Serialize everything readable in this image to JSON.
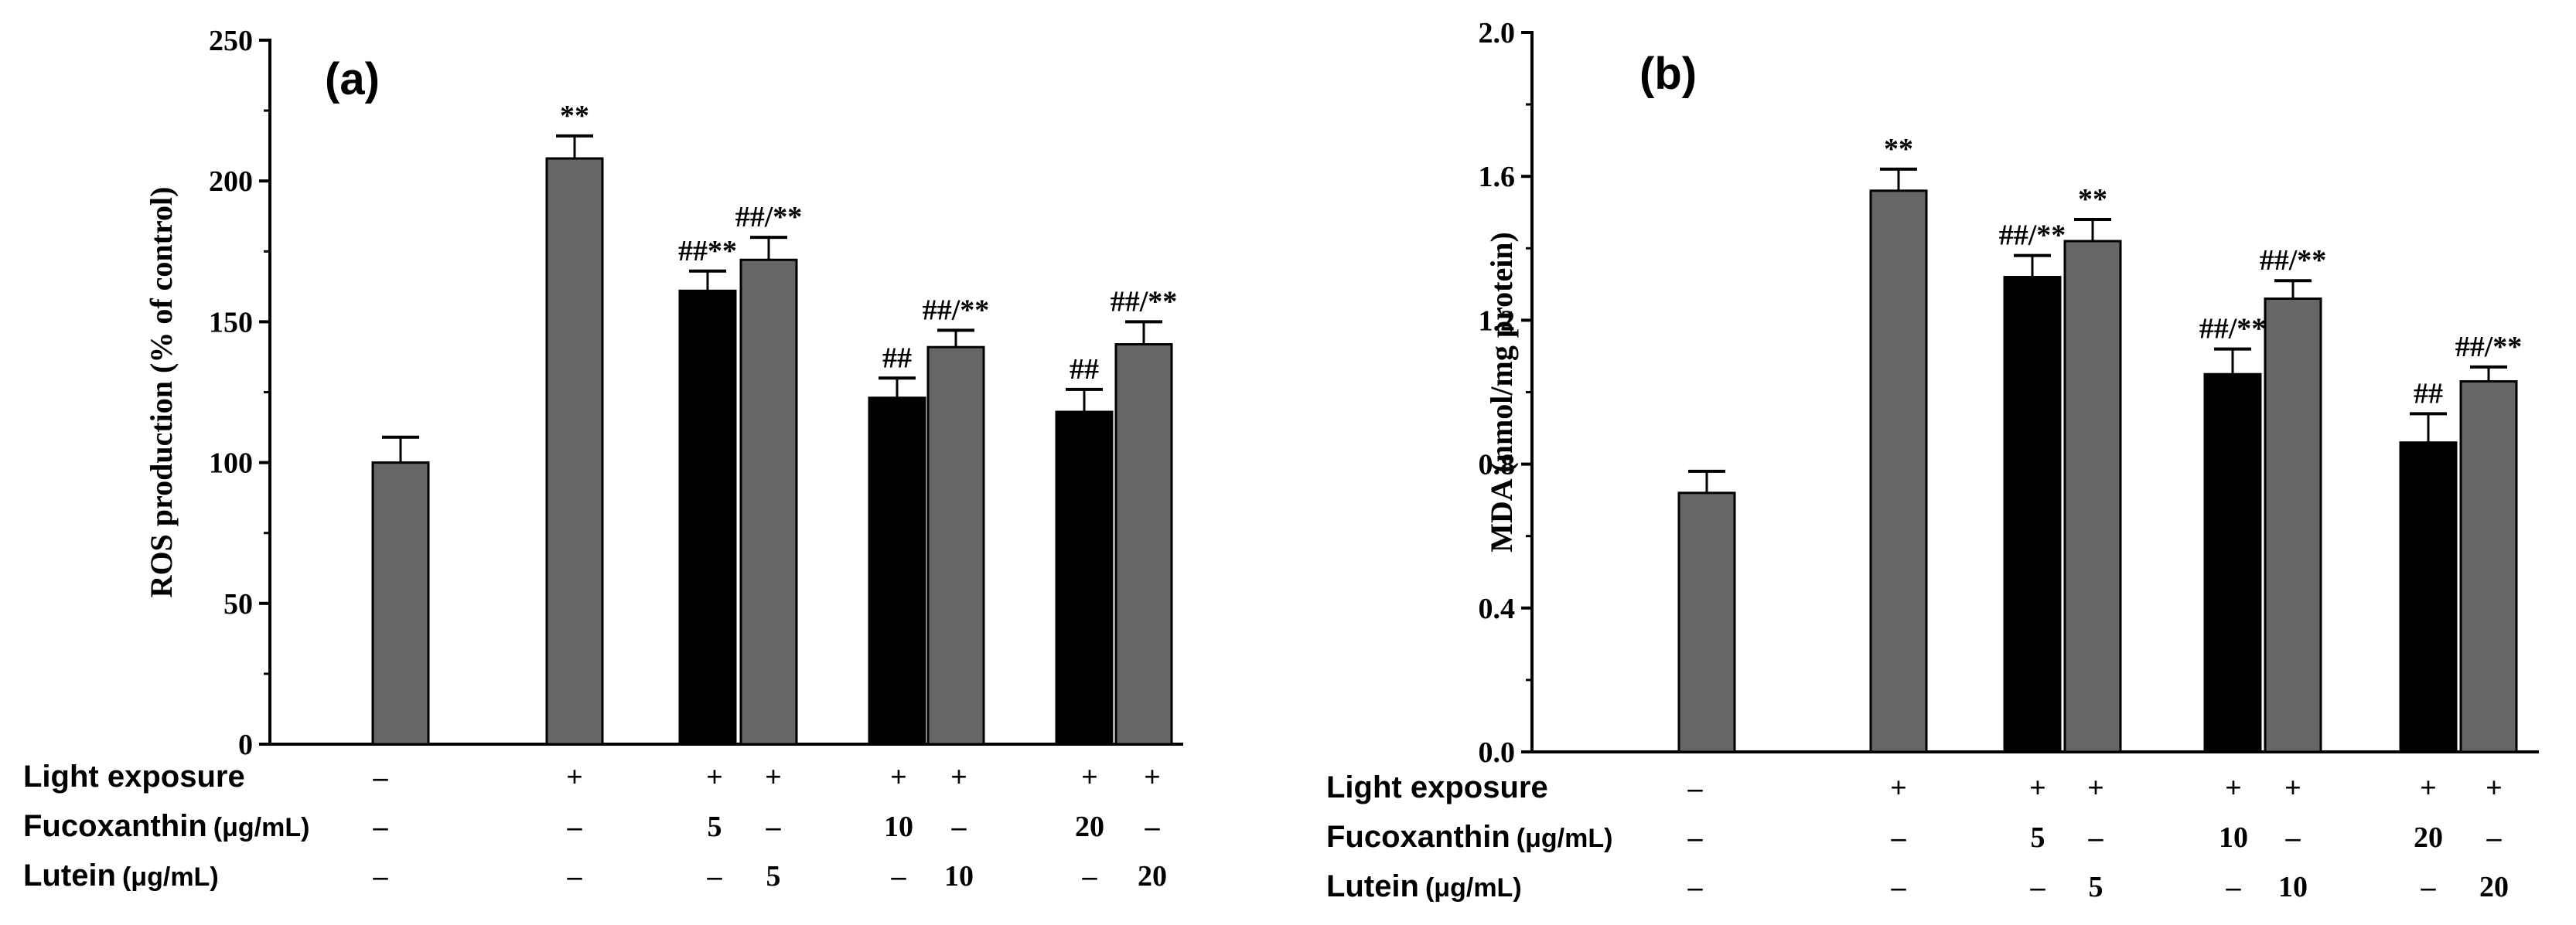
{
  "chart_data": [
    {
      "type": "bar",
      "panel_label": "(a)",
      "ylabel": "ROS production (% of control)",
      "ylim": [
        0,
        250
      ],
      "yticks": [
        "0",
        "50",
        "100",
        "150",
        "200",
        "250"
      ],
      "bars": [
        {
          "group": 1,
          "series": "Lutein",
          "value": 100,
          "error": 9,
          "annotation": ""
        },
        {
          "group": 2,
          "series": "Lutein",
          "value": 208,
          "error": 8,
          "annotation": "**"
        },
        {
          "group": 3,
          "series": "Fucoxanthin",
          "value": 161,
          "error": 7,
          "annotation": "##**"
        },
        {
          "group": 3,
          "series": "Lutein",
          "value": 172,
          "error": 8,
          "annotation": "##/**"
        },
        {
          "group": 4,
          "series": "Fucoxanthin",
          "value": 123,
          "error": 7,
          "annotation": "##"
        },
        {
          "group": 4,
          "series": "Lutein",
          "value": 141,
          "error": 6,
          "annotation": "##/**"
        },
        {
          "group": 5,
          "series": "Fucoxanthin",
          "value": 118,
          "error": 8,
          "annotation": "##"
        },
        {
          "group": 5,
          "series": "Lutein",
          "value": 142,
          "error": 8,
          "annotation": "##/**"
        }
      ],
      "conditions": {
        "rows": [
          {
            "label": "Light exposure",
            "unit": ""
          },
          {
            "label": "Fucoxanthin",
            "unit": "(μg/mL)"
          },
          {
            "label": "Lutein",
            "unit": "(μg/mL)"
          }
        ],
        "values": [
          [
            "–",
            "+",
            "+",
            "+",
            "+",
            "+",
            "+",
            "+"
          ],
          [
            "–",
            "–",
            "5",
            "–",
            "10",
            "–",
            "20",
            "–"
          ],
          [
            "–",
            "–",
            "–",
            "5",
            "–",
            "10",
            "–",
            "20"
          ]
        ]
      }
    },
    {
      "type": "bar",
      "panel_label": "(b)",
      "ylabel": "MDA (nmol/mg protein)",
      "ylim": [
        0,
        2.0
      ],
      "yticks": [
        "0.0",
        "0.4",
        "0.8",
        "1.2",
        "1.6",
        "2.0"
      ],
      "bars": [
        {
          "group": 1,
          "series": "Lutein",
          "value": 0.72,
          "error": 0.06,
          "annotation": ""
        },
        {
          "group": 2,
          "series": "Lutein",
          "value": 1.56,
          "error": 0.06,
          "annotation": "**"
        },
        {
          "group": 3,
          "series": "Fucoxanthin",
          "value": 1.32,
          "error": 0.06,
          "annotation": "##/**"
        },
        {
          "group": 3,
          "series": "Lutein",
          "value": 1.42,
          "error": 0.06,
          "annotation": "**"
        },
        {
          "group": 4,
          "series": "Fucoxanthin",
          "value": 1.05,
          "error": 0.07,
          "annotation": "##/**"
        },
        {
          "group": 4,
          "series": "Lutein",
          "value": 1.26,
          "error": 0.05,
          "annotation": "##/**"
        },
        {
          "group": 5,
          "series": "Fucoxanthin",
          "value": 0.86,
          "error": 0.08,
          "annotation": "##"
        },
        {
          "group": 5,
          "series": "Lutein",
          "value": 1.03,
          "error": 0.04,
          "annotation": "##/**"
        }
      ],
      "conditions": {
        "rows": [
          {
            "label": "Light exposure",
            "unit": ""
          },
          {
            "label": "Fucoxanthin",
            "unit": "(μg/mL)"
          },
          {
            "label": "Lutein",
            "unit": "(μg/mL)"
          }
        ],
        "values": [
          [
            "–",
            "+",
            "+",
            "+",
            "+",
            "+",
            "+",
            "+"
          ],
          [
            "–",
            "–",
            "5",
            "–",
            "10",
            "–",
            "20",
            "–"
          ],
          [
            "–",
            "–",
            "–",
            "5",
            "–",
            "10",
            "–",
            "20"
          ]
        ]
      }
    }
  ],
  "colors": {
    "Fucoxanthin": "#000000",
    "Lutein": "#666666"
  }
}
